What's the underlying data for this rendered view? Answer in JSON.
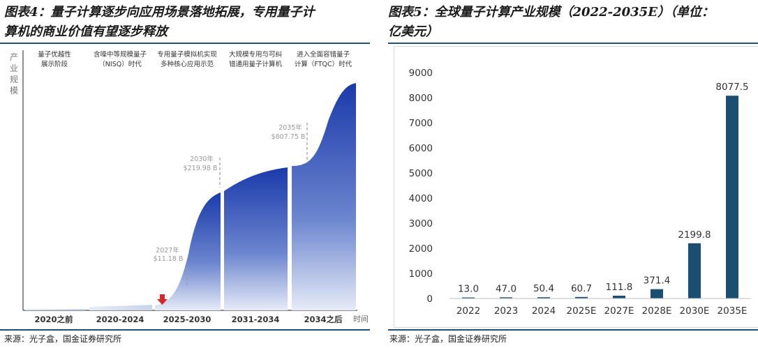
{
  "left": {
    "title": "图表4：量子计算逐步向应用场景落地拓展，专用量子计算机的商业价值有望逐步释放",
    "title_line1": "图表4：量子计算逐步向应用场景落地拓展，专用量子计",
    "title_line2": "算机的商业价值有望逐步释放",
    "source": "来源：光子盒，国金证券研究所",
    "chart_data": {
      "type": "area",
      "ylabel": "产业规模",
      "xlabel": "时间",
      "periods": [
        "2020之前",
        "2020-2024",
        "2025-2030",
        "2031-2034",
        "2034之后"
      ],
      "stages": [
        {
          "line1": "量子优越性",
          "line2": "展示阶段"
        },
        {
          "line1": "含噪中等规模量子",
          "line2": "（NISQ）时代"
        },
        {
          "line1": "专用量子模拟机实现",
          "line2": "多种核心应用示范"
        },
        {
          "line1": "大规模专用与可纠",
          "line2": "错通用量子计算机"
        },
        {
          "line1": "进入全面容错量子",
          "line2": "计算（FTQC）时代"
        }
      ],
      "annotations": [
        {
          "year": "2027年",
          "value": "$11.18 B"
        },
        {
          "year": "2030年",
          "value": "$219.98 B"
        },
        {
          "year": "2035年",
          "value": "$807.75 B"
        }
      ]
    }
  },
  "right": {
    "title_line1": "图表5：全球量子计算产业规模（2022-2035E）（单位：",
    "title_line2": "亿美元）",
    "source": "来源：光子盒，国金证券研究所",
    "chart_data": {
      "type": "bar",
      "categories": [
        "2022",
        "2023",
        "2024",
        "2025E",
        "2027E",
        "2028E",
        "2030E",
        "2035E"
      ],
      "values": [
        13.0,
        47.0,
        50.4,
        60.7,
        111.8,
        371.4,
        2199.8,
        8077.5
      ],
      "value_labels": [
        "13.0",
        "47.0",
        "50.4",
        "60.7",
        "111.8",
        "371.4",
        "2199.8",
        "8077.5"
      ],
      "ylim": [
        0,
        9000
      ],
      "yticks": [
        0,
        1000,
        2000,
        3000,
        4000,
        5000,
        6000,
        7000,
        8000,
        9000
      ],
      "bar_color": "#1b4f72",
      "grid": false,
      "legend": "none"
    }
  }
}
